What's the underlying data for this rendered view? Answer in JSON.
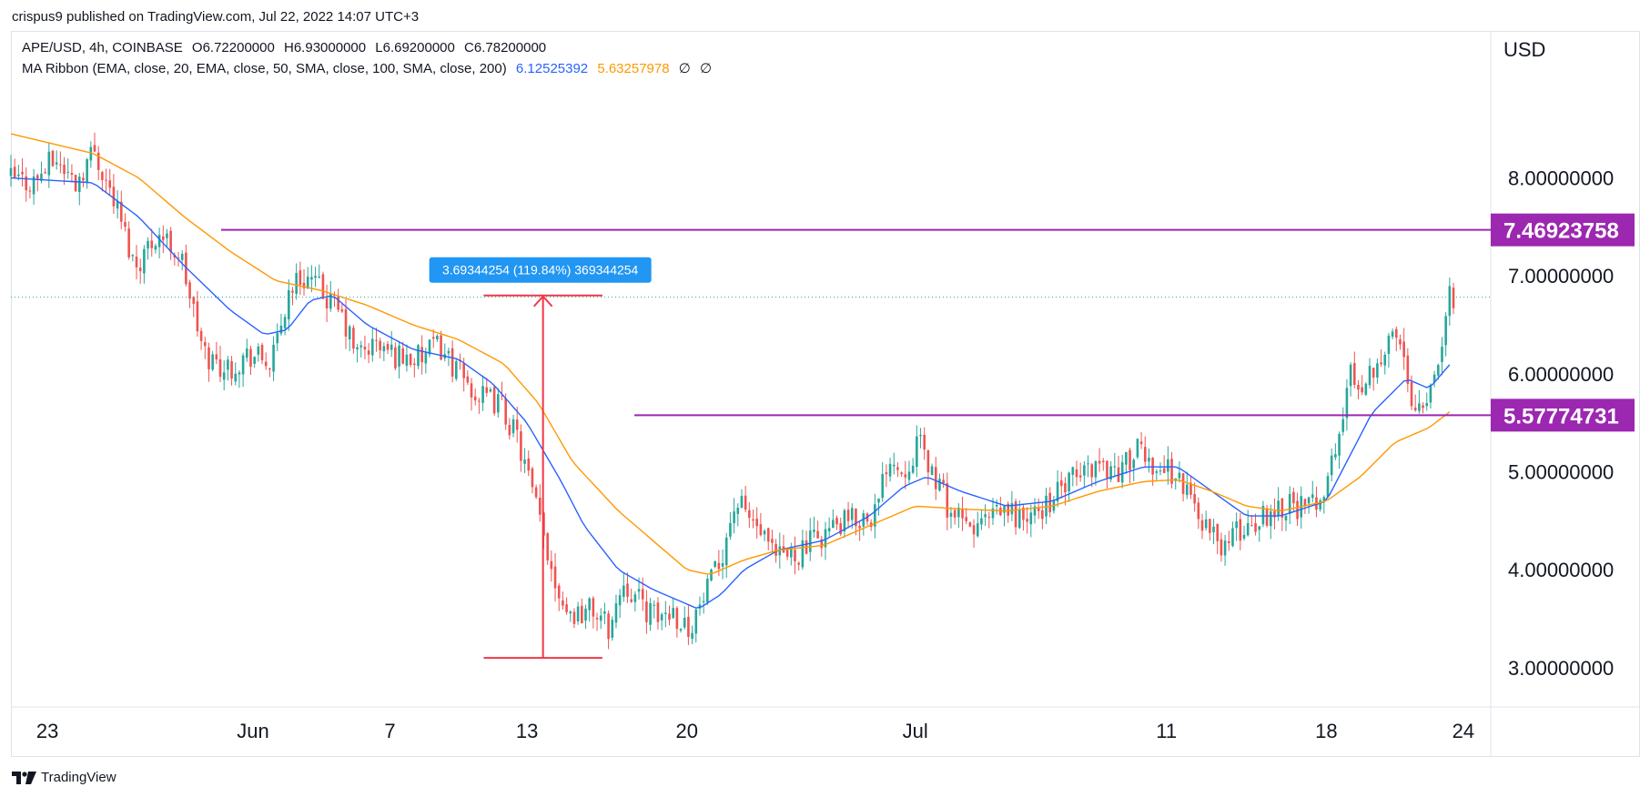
{
  "header": {
    "publish_text": "crispus9 published on TradingView.com, Jul 22, 2022 14:07 UTC+3"
  },
  "legend": {
    "symbol": "APE/USD, 4h, COINBASE",
    "open_key": "O",
    "open": "6.72200000",
    "high_key": "H",
    "high": "6.93000000",
    "low_key": "L",
    "low": "6.69200000",
    "close_key": "C",
    "close": "6.78200000",
    "ma_ribbon": "MA Ribbon (EMA, close, 20, EMA, close, 50, SMA, close, 100, SMA, close, 200)",
    "ma1": "6.12525392",
    "ma2": "5.63257978",
    "ma3": "∅",
    "ma4": "∅"
  },
  "price_axis": {
    "currency": "USD"
  },
  "footer": {
    "brand": "TradingView"
  },
  "colors": {
    "up": "#26a69a",
    "down": "#ef5350",
    "ema20": "#2962ff",
    "ema50": "#ff9800",
    "level": "#9c27b0",
    "measure": "#f23645",
    "label_bg": "#2196f3"
  },
  "chart_data": {
    "type": "candlestick",
    "symbol": "APE/USD",
    "timeframe": "4h",
    "exchange": "COINBASE",
    "ylim": [
      2.6,
      9.5
    ],
    "y_ticks": [
      "8.00000000",
      "7.00000000",
      "6.00000000",
      "5.00000000",
      "4.00000000",
      "3.00000000"
    ],
    "y_tick_values": [
      8,
      7,
      6,
      5,
      4,
      3
    ],
    "x_ticks": [
      "23",
      "Jun",
      "7",
      "13",
      "20",
      "Jul",
      "11",
      "18",
      "24"
    ],
    "x_tick_days": [
      0,
      9,
      15,
      21,
      28,
      38,
      49,
      56,
      62
    ],
    "x_range_days": [
      -1.6,
      63.2
    ],
    "price_path": [
      [
        -1.6,
        8.0
      ],
      [
        -0.5,
        7.95
      ],
      [
        0.5,
        8.2
      ],
      [
        1.4,
        7.95
      ],
      [
        2.2,
        8.3
      ],
      [
        3.2,
        7.7
      ],
      [
        4.0,
        7.1
      ],
      [
        5.0,
        7.45
      ],
      [
        6.0,
        7.2
      ],
      [
        7.0,
        6.2
      ],
      [
        8.0,
        6.05
      ],
      [
        9.0,
        6.2
      ],
      [
        10.0,
        6.1
      ],
      [
        10.8,
        6.9
      ],
      [
        11.5,
        7.0
      ],
      [
        12.3,
        6.8
      ],
      [
        13.0,
        6.6
      ],
      [
        13.7,
        6.2
      ],
      [
        14.5,
        6.3
      ],
      [
        15.3,
        6.2
      ],
      [
        16.5,
        6.15
      ],
      [
        17.3,
        6.3
      ],
      [
        18.2,
        6.0
      ],
      [
        19.1,
        5.75
      ],
      [
        20.0,
        5.7
      ],
      [
        20.8,
        5.3
      ],
      [
        21.6,
        4.6
      ],
      [
        22.4,
        3.9
      ],
      [
        23.0,
        3.55
      ],
      [
        24.0,
        3.6
      ],
      [
        24.8,
        3.4
      ],
      [
        25.4,
        3.9
      ],
      [
        26.0,
        3.7
      ],
      [
        26.8,
        3.5
      ],
      [
        27.5,
        3.6
      ],
      [
        28.2,
        3.4
      ],
      [
        28.8,
        3.65
      ],
      [
        29.5,
        4.0
      ],
      [
        30.3,
        4.7
      ],
      [
        31.2,
        4.45
      ],
      [
        32.0,
        4.1
      ],
      [
        33.2,
        4.2
      ],
      [
        34.3,
        4.4
      ],
      [
        35.4,
        4.5
      ],
      [
        36.5,
        4.6
      ],
      [
        37.0,
        5.2
      ],
      [
        37.6,
        5.0
      ],
      [
        38.3,
        5.3
      ],
      [
        38.9,
        5.0
      ],
      [
        39.7,
        4.6
      ],
      [
        40.5,
        4.4
      ],
      [
        41.3,
        4.5
      ],
      [
        42.2,
        4.6
      ],
      [
        43.2,
        4.5
      ],
      [
        44.0,
        4.7
      ],
      [
        45.0,
        4.9
      ],
      [
        46.1,
        5.1
      ],
      [
        47.0,
        5.0
      ],
      [
        47.9,
        5.2
      ],
      [
        48.8,
        5.05
      ],
      [
        49.5,
        5.0
      ],
      [
        50.2,
        4.75
      ],
      [
        51.0,
        4.4
      ],
      [
        51.6,
        4.25
      ],
      [
        52.4,
        4.4
      ],
      [
        53.1,
        4.5
      ],
      [
        53.7,
        4.6
      ],
      [
        54.5,
        4.7
      ],
      [
        55.3,
        4.6
      ],
      [
        56.0,
        4.8
      ],
      [
        56.6,
        5.2
      ],
      [
        57.2,
        6.0
      ],
      [
        57.8,
        5.9
      ],
      [
        58.5,
        6.2
      ],
      [
        59.3,
        6.4
      ],
      [
        60.0,
        5.7
      ],
      [
        60.6,
        5.8
      ],
      [
        61.1,
        6.2
      ],
      [
        61.5,
        6.75
      ],
      [
        61.7,
        6.78
      ]
    ],
    "series": [
      {
        "name": "EMA 20",
        "values_path": [
          [
            -1.6,
            8.0
          ],
          [
            2.0,
            7.95
          ],
          [
            4.0,
            7.6
          ],
          [
            6.0,
            7.1
          ],
          [
            8.0,
            6.65
          ],
          [
            9.5,
            6.4
          ],
          [
            10.5,
            6.45
          ],
          [
            11.5,
            6.75
          ],
          [
            12.5,
            6.8
          ],
          [
            14.0,
            6.5
          ],
          [
            16.0,
            6.25
          ],
          [
            18.0,
            6.15
          ],
          [
            19.5,
            5.9
          ],
          [
            21.0,
            5.5
          ],
          [
            22.5,
            4.9
          ],
          [
            23.5,
            4.45
          ],
          [
            25.0,
            4.0
          ],
          [
            26.5,
            3.8
          ],
          [
            28.5,
            3.6
          ],
          [
            29.5,
            3.75
          ],
          [
            30.5,
            4.0
          ],
          [
            32.0,
            4.2
          ],
          [
            34.0,
            4.3
          ],
          [
            36.0,
            4.55
          ],
          [
            37.5,
            4.85
          ],
          [
            38.5,
            4.95
          ],
          [
            40.0,
            4.8
          ],
          [
            42.0,
            4.65
          ],
          [
            44.0,
            4.7
          ],
          [
            46.0,
            4.9
          ],
          [
            48.0,
            5.05
          ],
          [
            49.5,
            5.05
          ],
          [
            51.0,
            4.8
          ],
          [
            52.5,
            4.55
          ],
          [
            54.0,
            4.55
          ],
          [
            56.0,
            4.7
          ],
          [
            57.0,
            5.15
          ],
          [
            58.0,
            5.6
          ],
          [
            59.5,
            5.95
          ],
          [
            60.5,
            5.85
          ],
          [
            61.5,
            6.12
          ]
        ]
      },
      {
        "name": "EMA 50",
        "values_path": [
          [
            -1.6,
            8.45
          ],
          [
            2.0,
            8.25
          ],
          [
            4.0,
            8.0
          ],
          [
            6.0,
            7.6
          ],
          [
            8.0,
            7.25
          ],
          [
            10.0,
            6.95
          ],
          [
            12.0,
            6.85
          ],
          [
            14.0,
            6.7
          ],
          [
            16.0,
            6.5
          ],
          [
            18.0,
            6.35
          ],
          [
            20.0,
            6.1
          ],
          [
            21.5,
            5.7
          ],
          [
            23.0,
            5.1
          ],
          [
            25.0,
            4.6
          ],
          [
            26.5,
            4.3
          ],
          [
            28.0,
            4.0
          ],
          [
            29.0,
            3.95
          ],
          [
            30.5,
            4.1
          ],
          [
            32.0,
            4.2
          ],
          [
            34.0,
            4.25
          ],
          [
            36.0,
            4.45
          ],
          [
            38.0,
            4.65
          ],
          [
            40.0,
            4.62
          ],
          [
            42.0,
            4.6
          ],
          [
            44.0,
            4.65
          ],
          [
            46.0,
            4.8
          ],
          [
            48.0,
            4.9
          ],
          [
            49.5,
            4.92
          ],
          [
            51.0,
            4.8
          ],
          [
            52.5,
            4.65
          ],
          [
            54.0,
            4.6
          ],
          [
            56.0,
            4.7
          ],
          [
            57.5,
            4.95
          ],
          [
            59.0,
            5.3
          ],
          [
            60.5,
            5.45
          ],
          [
            61.5,
            5.63
          ]
        ]
      }
    ],
    "levels": [
      {
        "value": 7.46923758,
        "label": "7.46923758",
        "x_start_day": 7.6
      },
      {
        "value": 5.57774731,
        "label": "5.57774731",
        "x_start_day": 25.7
      }
    ],
    "last_price_line": 6.782,
    "measure": {
      "from_price": 3.1,
      "to_price": 6.8,
      "day_start": 19.1,
      "day_end": 24.3,
      "label": "3.69344254 (119.84%) 369344254"
    },
    "grid": false,
    "legend_position": "top-left"
  }
}
